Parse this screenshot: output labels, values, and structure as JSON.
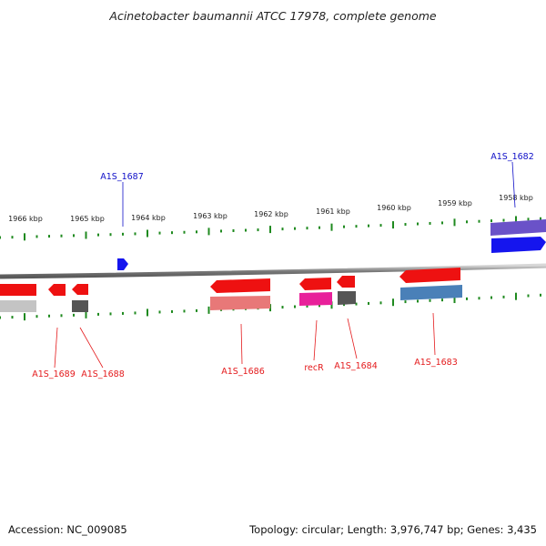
{
  "title": "Acinetobacter baumannii ATCC 17978, complete genome",
  "footer": {
    "accession": "Accession: NC_009085",
    "stats": "Topology: circular; Length: 3,976,747 bp; Genes: 3,435"
  },
  "ticks": {
    "labels": [
      "1966 kbp",
      "1965 kbp",
      "1964 kbp",
      "1963 kbp",
      "1962 kbp",
      "1961 kbp",
      "1960 kbp",
      "1959 kbp",
      "1958 kbp"
    ]
  },
  "genes": {
    "forward": [
      {
        "label": "A1S_1687"
      },
      {
        "label": "A1S_1682"
      }
    ],
    "reverse": [
      {
        "label": "A1S_1689"
      },
      {
        "label": "A1S_1688"
      },
      {
        "label": "A1S_1686"
      },
      {
        "label": "recR"
      },
      {
        "label": "A1S_1684"
      },
      {
        "label": "A1S_1683"
      }
    ]
  },
  "colors": {
    "backbone": "#8c8c8c",
    "tick": "#1f8a1f",
    "forward_label": "#1010c8",
    "reverse_label": "#e41a1c",
    "gene_red": "#ee1111",
    "gene_blue": "#1515ee",
    "gene_purple": "#6a52c8",
    "gene_pink": "#e8209a",
    "gene_salmon": "#e87878",
    "gene_steel": "#4a80b8",
    "gene_dgray": "#555555",
    "gene_lgray": "#c4c4c4"
  }
}
